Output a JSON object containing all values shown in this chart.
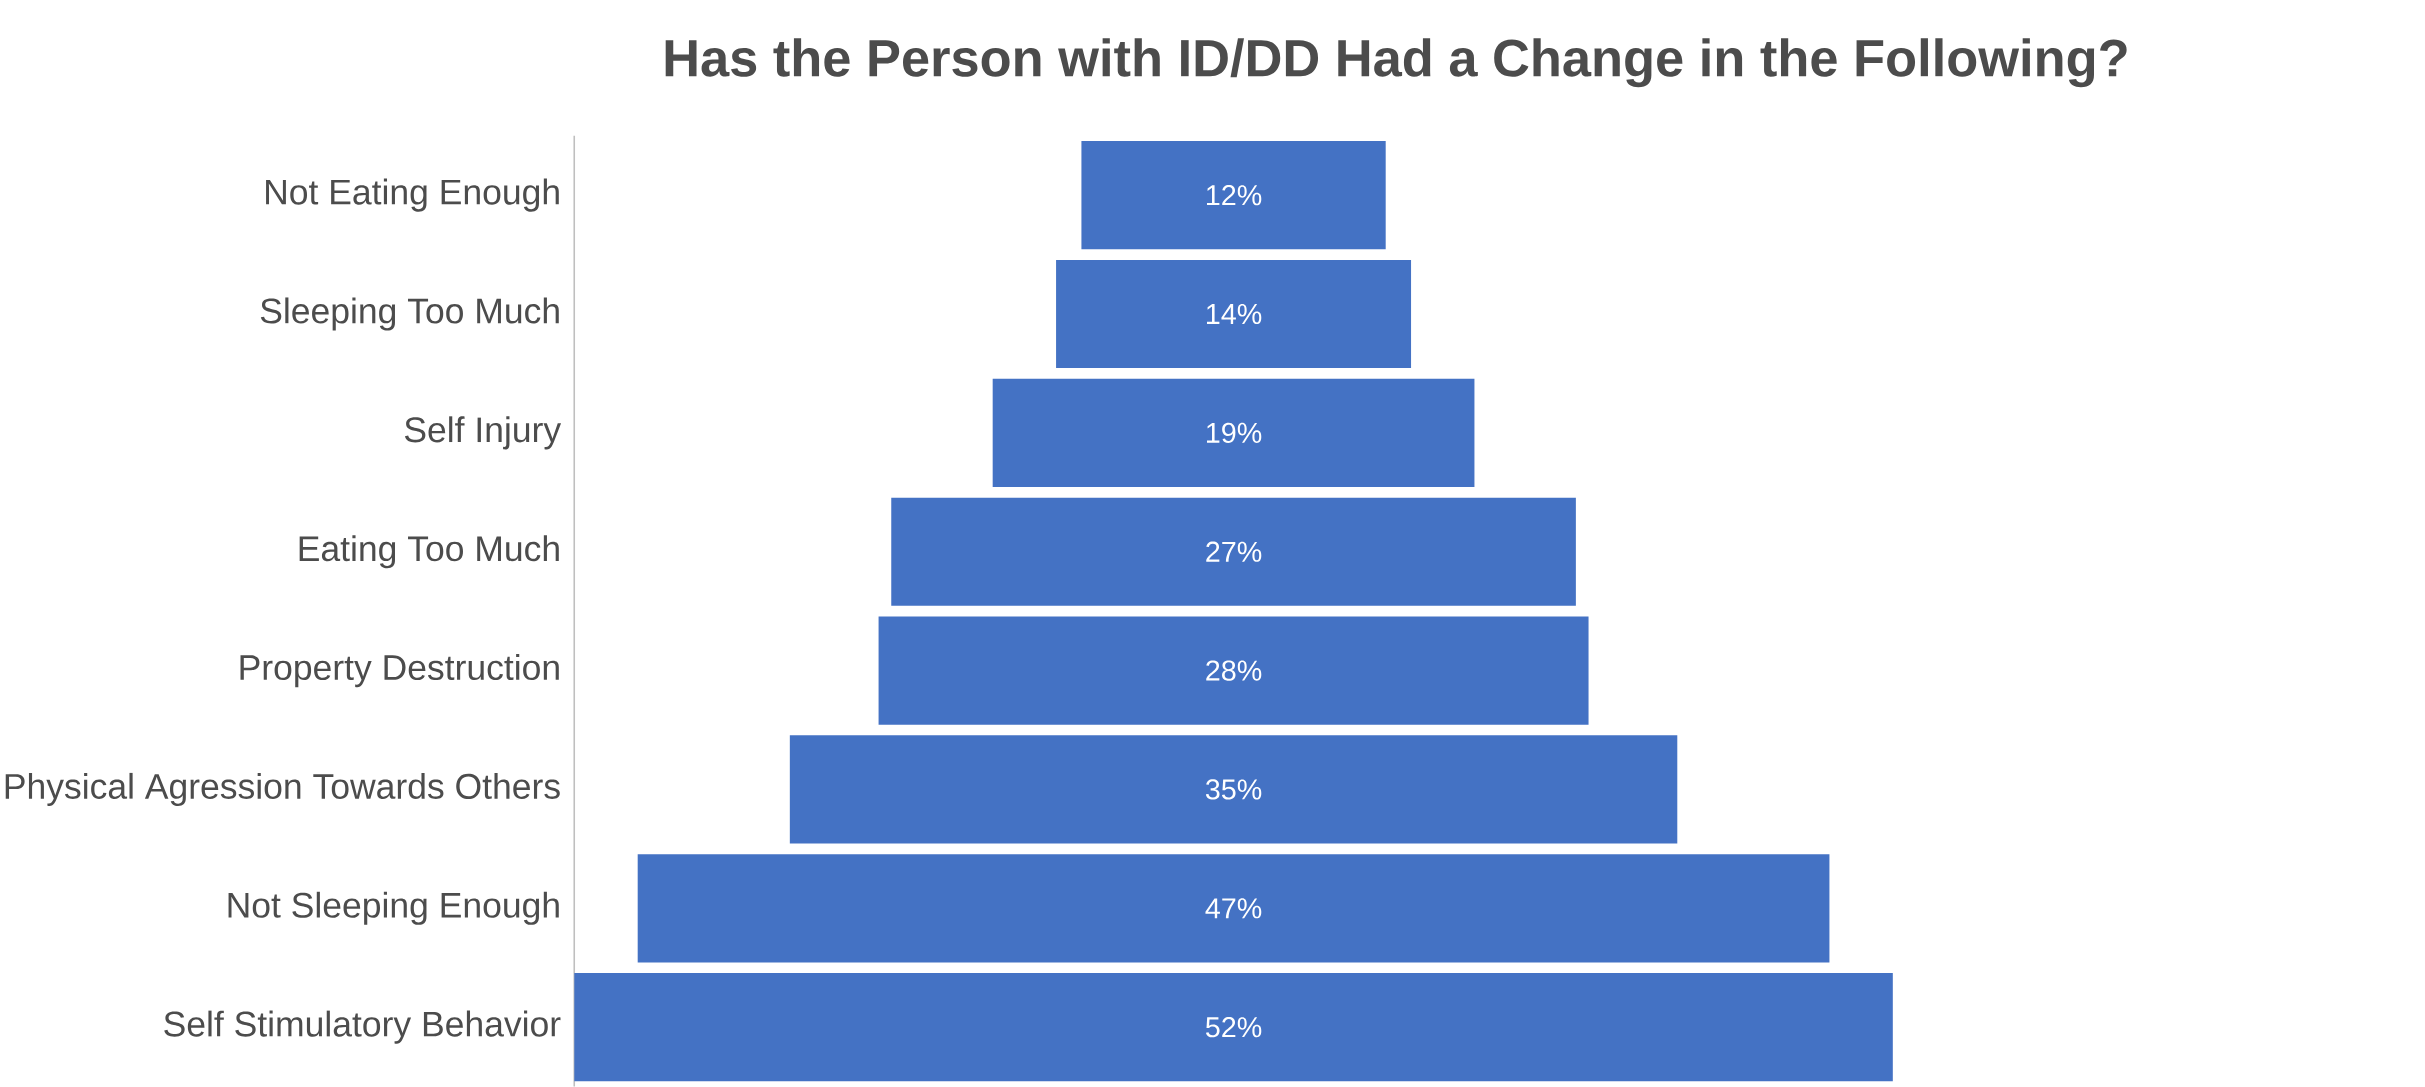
{
  "chart_data": {
    "type": "other",
    "title": "Has the Person with ID/DD Had a Change in the Following?",
    "categories": [
      "Not Eating Enough",
      "Sleeping Too Much",
      "Self Injury",
      "Eating Too Much",
      "Property Destruction",
      "Physical Agression Towards Others",
      "Not Sleeping Enough",
      "Self Stimulatory Behavior"
    ],
    "values": [
      12,
      14,
      19,
      27,
      28,
      35,
      47,
      52
    ],
    "value_labels": [
      "12%",
      "14%",
      "19%",
      "27%",
      "28%",
      "35%",
      "47%",
      "52%"
    ],
    "color": "#4472c4"
  }
}
